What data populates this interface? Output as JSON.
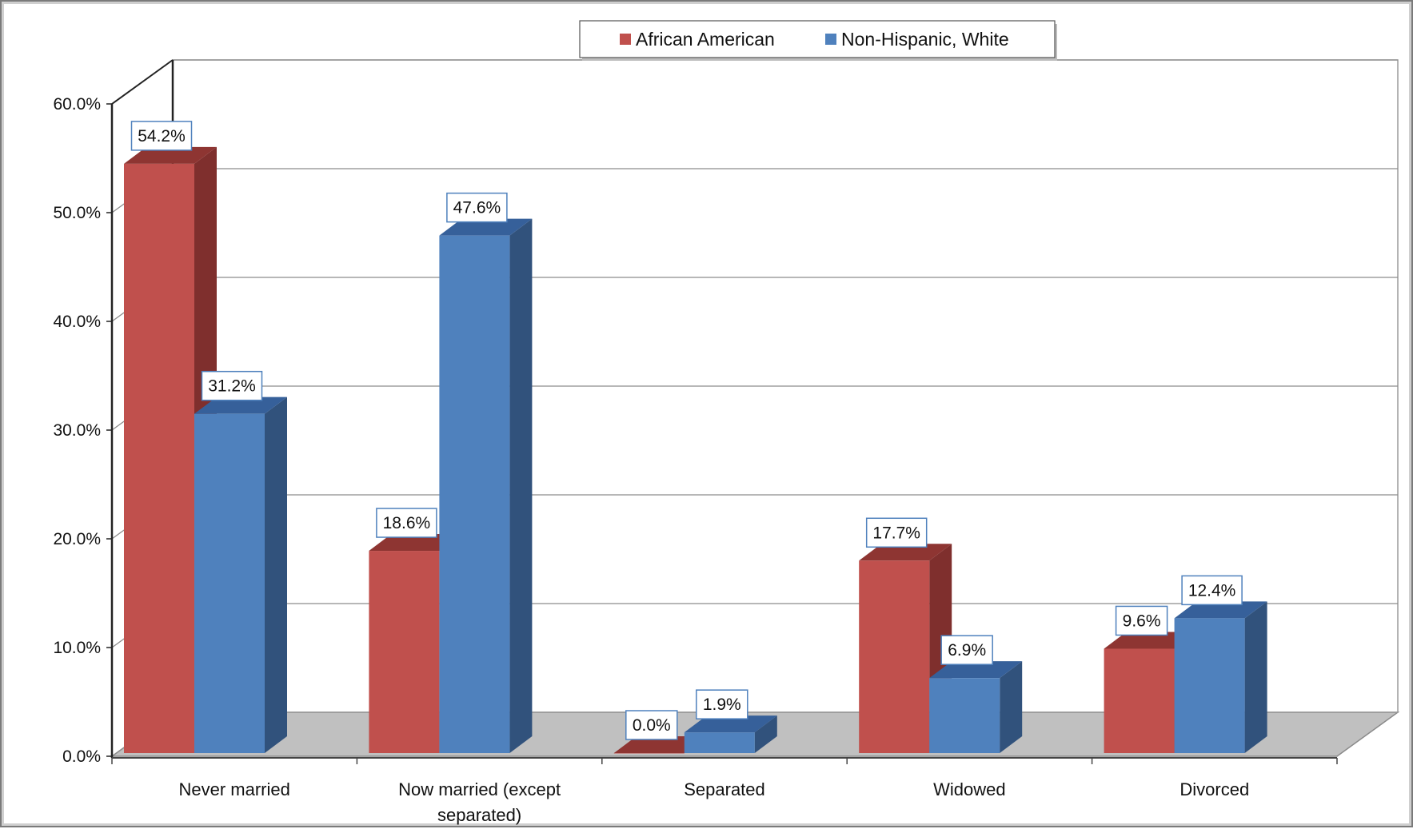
{
  "chart_data": {
    "type": "bar",
    "title": "",
    "xlabel": "",
    "ylabel": "",
    "categories": [
      "Never married",
      "Now married (except separated)",
      "Separated",
      "Widowed",
      "Divorced"
    ],
    "category_label_lines": [
      [
        "Never married"
      ],
      [
        "Now married (except",
        "separated)"
      ],
      [
        "Separated"
      ],
      [
        "Widowed"
      ],
      [
        "Divorced"
      ]
    ],
    "series": [
      {
        "name": "African American",
        "values": [
          54.2,
          18.6,
          0.0,
          17.7,
          9.6
        ],
        "color": "#C0504D",
        "side_color": "#7F2F2D",
        "top_color": "#8E3532"
      },
      {
        "name": "Non-Hispanic, White",
        "values": [
          31.2,
          47.6,
          1.9,
          6.9,
          12.4
        ],
        "color": "#4F81BD",
        "side_color": "#31527C",
        "top_color": "#36609A"
      }
    ],
    "data_labels": [
      [
        "54.2%",
        "18.6%",
        "0.0%",
        "17.7%",
        "9.6%"
      ],
      [
        "31.2%",
        "47.6%",
        "1.9%",
        "6.9%",
        "12.4%"
      ]
    ],
    "ylim": [
      0,
      60
    ],
    "yticks": [
      0,
      10,
      20,
      30,
      40,
      50,
      60
    ],
    "ytick_labels": [
      "0.0%",
      "10.0%",
      "20.0%",
      "30.0%",
      "40.0%",
      "50.0%",
      "60.0%"
    ],
    "grid": true,
    "legend_position": "top-center",
    "style": "3d-clustered-column"
  }
}
